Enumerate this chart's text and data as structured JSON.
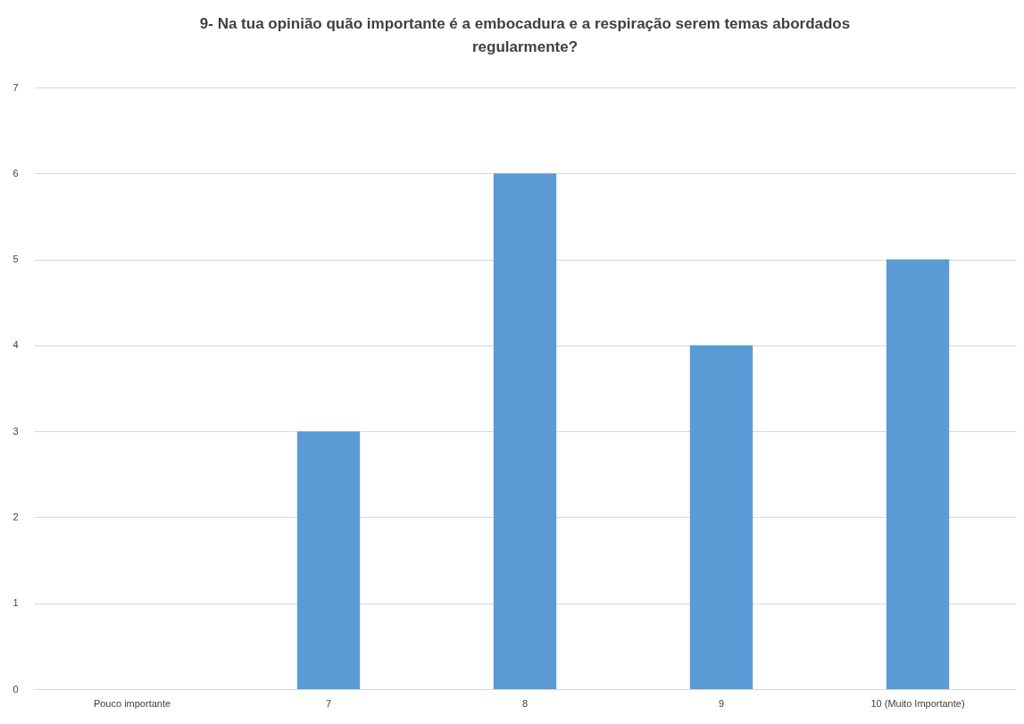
{
  "chart_data": {
    "type": "bar",
    "title": "9- Na tua opinião quão importante é a embocadura e a respiração serem temas abordados regularmente?",
    "categories": [
      "Pouco importante",
      "7",
      "8",
      "9",
      "10 (Muito Importante)"
    ],
    "values": [
      0,
      3,
      6,
      4,
      5
    ],
    "color": "#5b9bd5",
    "ylim": [
      0,
      7
    ],
    "yticks": [
      0,
      1,
      2,
      3,
      4,
      5,
      6,
      7
    ],
    "grid": "y"
  }
}
